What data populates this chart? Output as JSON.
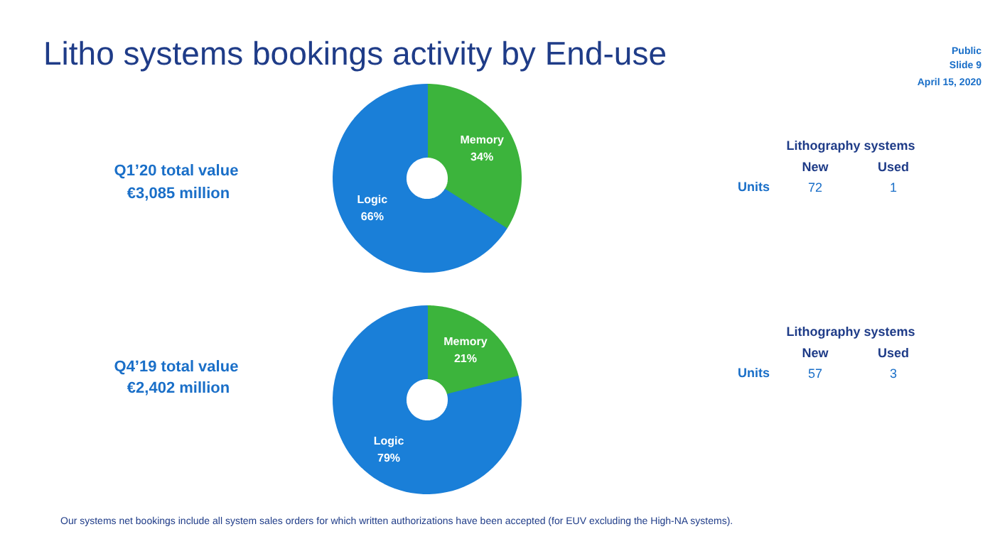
{
  "chart_data": [
    {
      "type": "donut",
      "title": "Litho systems bookings activity by End-use",
      "categories": [
        "Memory",
        "Logic"
      ],
      "values": [
        34,
        66
      ],
      "colors": [
        "#3cb43c",
        "#1a7fd8"
      ],
      "value_labels": [
        "34%",
        "66%"
      ],
      "annotations": [
        "Public",
        "Slide 9",
        "April 15, 2020",
        "Q1’20  total value",
        "€3,085 million",
        "Lithography systems",
        "New",
        "Used",
        "Units",
        "72",
        "1"
      ]
    },
    {
      "type": "donut",
      "categories": [
        "Memory",
        "Logic"
      ],
      "values": [
        21,
        79
      ],
      "colors": [
        "#3cb43c",
        "#1a7fd8"
      ],
      "value_labels": [
        "21%",
        "79%"
      ],
      "annotations": [
        "Q4’19  total value",
        "€2,402 million",
        "Lithography systems",
        "New",
        "Used",
        "Units",
        "57",
        "3",
        "Our systems net bookings include all system sales orders for which written authorizations have been accepted (for EUV excluding the High-NA systems)."
      ]
    }
  ]
}
